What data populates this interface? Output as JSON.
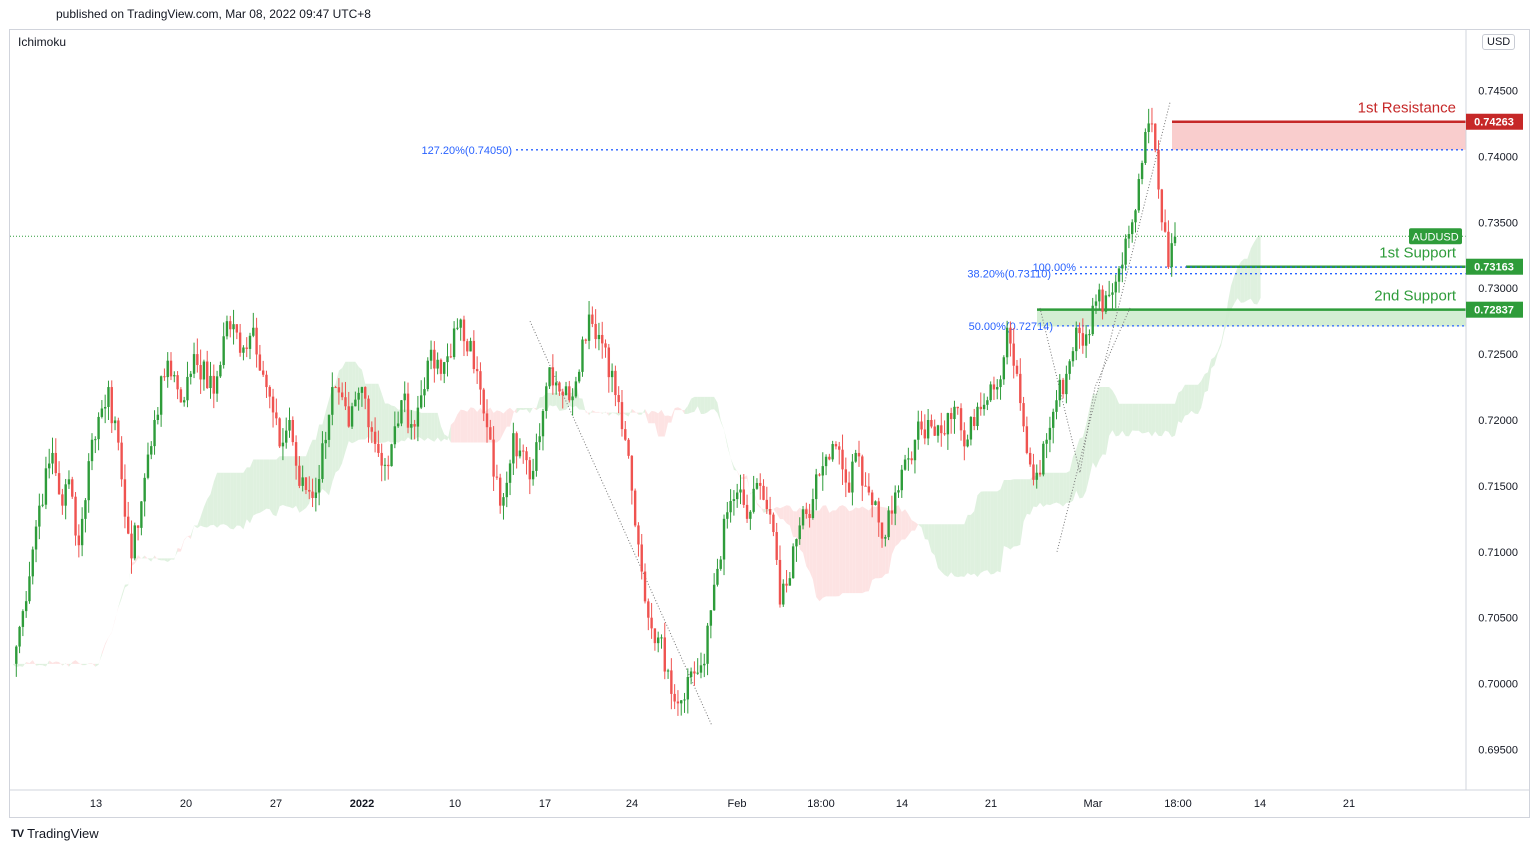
{
  "header": {
    "published_text": "published on TradingView.com, Mar 08, 2022 09:47 UTC+8"
  },
  "indicator": {
    "name": "Ichimoku"
  },
  "currency": {
    "label": "USD"
  },
  "footer": {
    "logo_icon": "tv-logo-icon",
    "brand": "TradingView"
  },
  "colors": {
    "up_candle": "#26a69a",
    "down_candle": "#ef5350",
    "resistance": "#c62828",
    "support": "#2e9c3a",
    "fib": "#2962ff",
    "cloud_bull": "#dcefdc",
    "cloud_bear": "#fde0e0"
  },
  "chart_data": {
    "type": "candlestick",
    "symbol": "AUDUSD",
    "last_price": 0.73394,
    "ylim": [
      0.6925,
      0.7475
    ],
    "y_ticks": [
      0.695,
      0.7,
      0.705,
      0.71,
      0.715,
      0.72,
      0.725,
      0.73,
      0.735,
      0.74,
      0.745
    ],
    "y_tick_labels": [
      "0.69500",
      "0.70000",
      "0.70500",
      "0.71000",
      "0.71500",
      "0.72000",
      "0.72500",
      "0.73000",
      "0.73500",
      "0.74000",
      "0.74500"
    ],
    "x_tick_labels": [
      "13",
      "20",
      "27",
      "2022",
      "10",
      "17",
      "24",
      "Feb",
      "18:00",
      "14",
      "21",
      "Mar",
      "18:00",
      "14",
      "21"
    ],
    "x_tick_index": [
      12,
      24,
      36,
      48,
      60,
      72,
      84,
      96,
      108,
      120,
      132,
      144,
      156,
      168,
      180
    ],
    "n_slots": 192,
    "waypoints": [
      [
        0,
        0.7015
      ],
      [
        3,
        0.7055
      ],
      [
        8,
        0.7135
      ],
      [
        12,
        0.7175
      ],
      [
        15,
        0.7135
      ],
      [
        17,
        0.7155
      ],
      [
        20,
        0.7105
      ],
      [
        24,
        0.7185
      ],
      [
        29,
        0.7225
      ],
      [
        33,
        0.7155
      ],
      [
        36,
        0.7095
      ],
      [
        43,
        0.72
      ],
      [
        47,
        0.7245
      ],
      [
        52,
        0.7215
      ],
      [
        55,
        0.725
      ],
      [
        61,
        0.722
      ],
      [
        65,
        0.7275
      ],
      [
        70,
        0.7255
      ],
      [
        73,
        0.727
      ],
      [
        77,
        0.7225
      ],
      [
        81,
        0.718
      ],
      [
        84,
        0.72
      ],
      [
        87,
        0.715
      ],
      [
        92,
        0.7145
      ],
      [
        97,
        0.7225
      ],
      [
        102,
        0.7195
      ],
      [
        106,
        0.7225
      ],
      [
        111,
        0.7175
      ],
      [
        114,
        0.7165
      ],
      [
        118,
        0.7215
      ],
      [
        122,
        0.7195
      ],
      [
        126,
        0.7245
      ],
      [
        130,
        0.7235
      ],
      [
        135,
        0.727
      ],
      [
        139,
        0.726
      ],
      [
        143,
        0.7205
      ],
      [
        148,
        0.7135
      ],
      [
        152,
        0.719
      ],
      [
        157,
        0.7155
      ],
      [
        163,
        0.724
      ],
      [
        169,
        0.7215
      ],
      [
        175,
        0.728
      ],
      [
        180,
        0.7255
      ],
      [
        186,
        0.7185
      ],
      [
        189,
        0.712
      ],
      [
        191,
        0.7085
      ],
      [
        193,
        0.705
      ],
      [
        196,
        0.7035
      ],
      [
        199,
        0.701
      ],
      [
        202,
        0.6985
      ],
      [
        205,
        0.7005
      ],
      [
        210,
        0.7015
      ],
      [
        213,
        0.7075
      ],
      [
        217,
        0.713
      ],
      [
        220,
        0.7145
      ],
      [
        223,
        0.7125
      ],
      [
        227,
        0.715
      ],
      [
        231,
        0.7115
      ],
      [
        233,
        0.706
      ],
      [
        236,
        0.708
      ],
      [
        239,
        0.712
      ],
      [
        243,
        0.714
      ],
      [
        246,
        0.7165
      ],
      [
        250,
        0.718
      ],
      [
        254,
        0.7145
      ],
      [
        256,
        0.7175
      ],
      [
        260,
        0.7145
      ],
      [
        264,
        0.711
      ],
      [
        268,
        0.7145
      ],
      [
        271,
        0.717
      ],
      [
        274,
        0.7185
      ],
      [
        278,
        0.72
      ],
      [
        282,
        0.719
      ],
      [
        286,
        0.721
      ],
      [
        289,
        0.718
      ],
      [
        293,
        0.721
      ],
      [
        296,
        0.7215
      ],
      [
        299,
        0.7225
      ],
      [
        302,
        0.727
      ],
      [
        305,
        0.7235
      ],
      [
        308,
        0.7175
      ],
      [
        311,
        0.716
      ],
      [
        314,
        0.7185
      ],
      [
        317,
        0.7215
      ],
      [
        320,
        0.7235
      ],
      [
        323,
        0.727
      ],
      [
        326,
        0.7265
      ],
      [
        329,
        0.729
      ],
      [
        333,
        0.7295
      ],
      [
        336,
        0.7315
      ],
      [
        340,
        0.735
      ],
      [
        343,
        0.7395
      ],
      [
        345,
        0.7425
      ],
      [
        347,
        0.7405
      ],
      [
        349,
        0.735
      ],
      [
        351,
        0.7316
      ],
      [
        353,
        0.7339
      ]
    ],
    "levels": [
      {
        "name": "1st Resistance",
        "value": 0.74263,
        "label": "0.74263",
        "zone_low": 0.7405
      },
      {
        "name": "1st Support",
        "value": 0.73163,
        "label": "0.73163"
      },
      {
        "name": "2nd Support",
        "value": 0.72837,
        "label": "0.72837",
        "zone_low": 0.7271
      }
    ],
    "fib_levels": [
      {
        "label": "127.20%(0.74050)",
        "value": 0.7405
      },
      {
        "label": "100.00%",
        "value": 0.7316
      },
      {
        "label": "38.20%(0.73110)",
        "value": 0.7311
      },
      {
        "label": "50.00%(0.72714)",
        "value": 0.72714
      }
    ],
    "pattern_points": [
      [
        72,
        0.7275
      ],
      [
        101,
        0.697
      ],
      [
        169,
        0.744
      ]
    ],
    "pattern_points_2": [
      [
        160,
        0.7285
      ],
      [
        164,
        0.7175
      ],
      [
        166,
        0.71
      ],
      [
        171,
        0.744
      ]
    ]
  }
}
